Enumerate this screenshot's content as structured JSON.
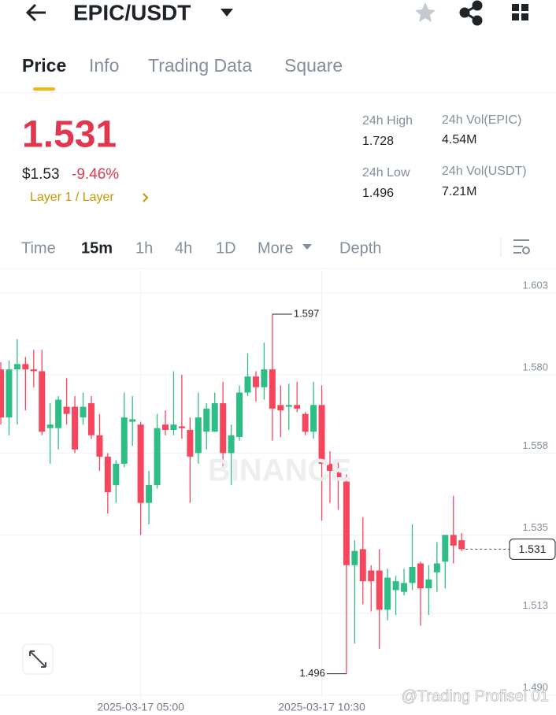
{
  "header": {
    "title": "EPIC/USDT"
  },
  "tabs": [
    "Price",
    "Info",
    "Trading Data",
    "Square"
  ],
  "price": {
    "last": "1.531",
    "usd": "$1.53",
    "change": "-9.46%",
    "tag": "Layer 1 / Layer"
  },
  "stats": [
    {
      "label": "24h High",
      "value": "1.728"
    },
    {
      "label": "24h Low",
      "value": "1.496"
    },
    {
      "label": "24h Vol(EPIC)",
      "value": "4.54M"
    },
    {
      "label": "24h Vol(USDT)",
      "value": "7.21M"
    }
  ],
  "intervals": [
    "Time",
    "15m",
    "1h",
    "4h",
    "1D",
    "More",
    "Depth"
  ],
  "watermark": "BINANCE",
  "overlay_text": "@Trading Profisel 01",
  "chart_data": {
    "type": "candlestick",
    "categories": [
      null,
      null,
      null,
      null,
      null,
      null,
      null,
      null,
      null,
      null,
      null,
      null,
      null,
      null,
      null,
      null,
      null,
      "2025-03-17 05:00",
      null,
      null,
      null,
      null,
      null,
      null,
      null,
      null,
      null,
      null,
      null,
      null,
      null,
      null,
      null,
      null,
      null,
      null,
      null,
      null,
      null,
      "2025-03-17 10:30",
      null,
      null,
      null,
      null,
      null,
      null,
      null,
      null,
      null,
      null,
      null,
      null,
      null,
      null,
      null,
      null,
      null
    ],
    "open": [
      1.5815,
      1.568,
      1.5815,
      1.583,
      1.5815,
      1.581,
      1.565,
      1.565,
      1.571,
      1.571,
      1.568,
      1.572,
      1.563,
      1.557,
      1.549,
      1.555,
      1.5668,
      1.566,
      1.544,
      1.549,
      1.566,
      1.5645,
      1.5655,
      1.5645,
      1.558,
      1.564,
      1.564,
      1.572,
      1.558,
      1.5625,
      1.575,
      1.5795,
      1.5765,
      1.5815,
      1.5715,
      1.571,
      1.5715,
      1.569,
      1.564,
      1.5715,
      1.555,
      1.5525,
      1.55,
      1.5265,
      1.531,
      1.525,
      1.525,
      1.514,
      1.5195,
      1.519,
      1.5215,
      1.527,
      1.52,
      1.5245,
      1.5275,
      1.535,
      1.5335
    ],
    "high": [
      1.5835,
      1.584,
      1.59,
      1.585,
      1.587,
      1.587,
      1.572,
      1.574,
      1.579,
      1.574,
      1.575,
      1.574,
      1.569,
      1.558,
      1.556,
      1.575,
      1.574,
      1.5668,
      1.553,
      1.569,
      1.57,
      1.581,
      1.58,
      1.568,
      1.575,
      1.572,
      1.575,
      1.578,
      1.566,
      1.577,
      1.586,
      1.581,
      1.589,
      1.597,
      1.577,
      1.5775,
      1.578,
      1.5695,
      1.578,
      1.577,
      1.5585,
      1.5555,
      1.552,
      1.5335,
      1.54,
      1.5265,
      1.531,
      1.5255,
      1.5235,
      1.5255,
      1.538,
      1.5275,
      1.5265,
      1.533,
      1.535,
      1.546,
      1.5355
    ],
    "low": [
      1.566,
      1.563,
      1.566,
      1.57,
      1.5765,
      1.563,
      1.555,
      1.559,
      1.566,
      1.558,
      1.566,
      1.562,
      1.553,
      1.541,
      1.544,
      1.554,
      1.56,
      1.535,
      1.538,
      1.548,
      1.563,
      1.563,
      1.562,
      1.544,
      1.555,
      1.559,
      1.564,
      1.553,
      1.549,
      1.5615,
      1.574,
      1.5725,
      1.573,
      1.5615,
      1.5625,
      1.5645,
      1.5695,
      1.563,
      1.562,
      1.539,
      1.544,
      1.542,
      1.496,
      1.5045,
      1.5155,
      1.5135,
      1.503,
      1.511,
      1.5125,
      1.518,
      1.5195,
      1.5095,
      1.5125,
      1.519,
      1.52,
      1.527,
      1.5305
    ],
    "close": [
      1.568,
      1.5815,
      1.583,
      1.5815,
      1.581,
      1.564,
      1.566,
      1.573,
      1.569,
      1.559,
      1.571,
      1.563,
      1.557,
      1.547,
      1.555,
      1.568,
      1.5675,
      1.544,
      1.549,
      1.565,
      1.5645,
      1.566,
      1.565,
      1.557,
      1.568,
      1.5705,
      1.572,
      1.558,
      1.563,
      1.575,
      1.5795,
      1.5765,
      1.5815,
      1.5705,
      1.57,
      1.5715,
      1.5705,
      1.564,
      1.5715,
      1.555,
      1.553,
      1.551,
      1.5265,
      1.5305,
      1.522,
      1.522,
      1.514,
      1.523,
      1.522,
      1.5215,
      1.526,
      1.52,
      1.5225,
      1.527,
      1.535,
      1.532,
      1.531
    ],
    "up_color": "#2ebd85",
    "down_color": "#f6465d",
    "ylim": [
      1.4895,
      1.6094
    ],
    "yticks": [
      1.603,
      {
        "value": 1.58,
        "label": "1.580"
      },
      1.558,
      1.535,
      1.513,
      {
        "value": 1.49,
        "label": "1.490"
      }
    ],
    "grid": true,
    "max_marker": 1.597,
    "min_marker": 1.496,
    "last_price": 1.531
  }
}
